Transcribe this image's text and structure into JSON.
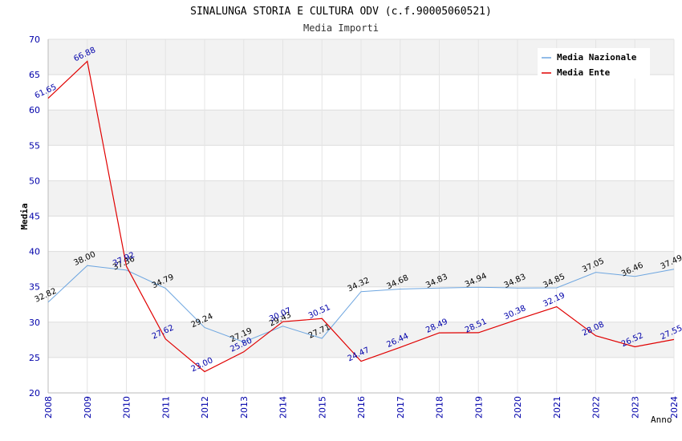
{
  "chart_data": {
    "type": "line",
    "title": "SINALUNGA STORIA E CULTURA ODV (c.f.90005060521)",
    "subtitle": "Media Importi",
    "xlabel": "Anno",
    "ylabel": "Media",
    "ylim": [
      20,
      70
    ],
    "yticks": [
      "20",
      "25",
      "30",
      "35",
      "40",
      "45",
      "50",
      "55",
      "60",
      "65",
      "70"
    ],
    "categories": [
      "2008",
      "2009",
      "2010",
      "2011",
      "2012",
      "2013",
      "2014",
      "2015",
      "2016",
      "2017",
      "2018",
      "2019",
      "2020",
      "2021",
      "2022",
      "2023",
      "2024"
    ],
    "grid": true,
    "legend_position": "top-right",
    "series": [
      {
        "name": "Media Nazionale",
        "color": "#6ea6e0",
        "values": [
          32.82,
          38.0,
          37.36,
          34.79,
          29.24,
          27.19,
          29.43,
          27.71,
          34.32,
          34.68,
          34.83,
          34.94,
          34.83,
          34.85,
          37.05,
          36.46,
          37.49
        ],
        "labels": [
          "32.82",
          "38.00",
          "37.36",
          "34.79",
          "29.24",
          "27.19",
          "29.43",
          "27.71",
          "34.32",
          "34.68",
          "34.83",
          "34.94",
          "34.83",
          "34.85",
          "37.05",
          "36.46",
          "37.49"
        ]
      },
      {
        "name": "Media Ente",
        "color": "#e00000",
        "values": [
          61.65,
          66.88,
          37.92,
          27.62,
          23.0,
          25.8,
          30.07,
          30.51,
          24.47,
          26.44,
          28.49,
          28.51,
          30.38,
          32.19,
          28.08,
          26.52,
          27.55
        ],
        "labels": [
          "61.65",
          "66.88",
          "37.92",
          "27.62",
          "23.00",
          "25.80",
          "30.07",
          "30.51",
          "24.47",
          "26.44",
          "28.49",
          "28.51",
          "30.38",
          "32.19",
          "28.08",
          "26.52",
          "27.55"
        ]
      }
    ]
  }
}
